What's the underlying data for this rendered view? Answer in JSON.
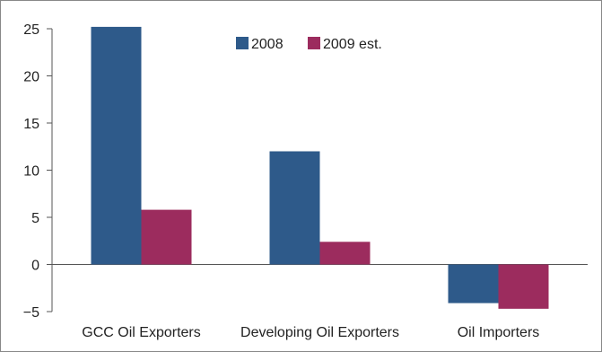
{
  "chart_data": {
    "type": "bar",
    "title": "",
    "xlabel": "",
    "ylabel": "",
    "categories": [
      "GCC Oil Exporters",
      "Developing Oil Exporters",
      "Oil Importers"
    ],
    "series": [
      {
        "name": "2008",
        "values": [
          25.2,
          12.0,
          -4.1
        ],
        "color": "#2e5a8a"
      },
      {
        "name": "2009 est.",
        "values": [
          5.8,
          2.4,
          -4.7
        ],
        "color": "#9c2c5e"
      }
    ],
    "ylim": [
      -5,
      25
    ],
    "yticks": [
      25,
      20,
      15,
      10,
      5,
      0,
      -5
    ],
    "ytick_labels": [
      "25",
      "20",
      "15",
      "10",
      "5",
      "0",
      "−5"
    ],
    "grid": false,
    "legend_position": "top-center",
    "frame_color": "#888888"
  }
}
